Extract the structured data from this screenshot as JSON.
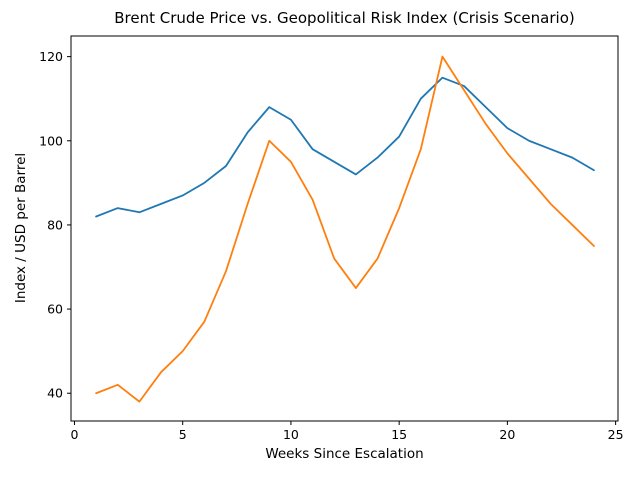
{
  "page": {
    "title": "Brent Crude Price vs. Geopolitical Risk Index (Crisis Scenario)"
  },
  "chart_data": {
    "type": "line",
    "title": "Brent Crude Price vs. Geopolitical Risk Index (Crisis Scenario)",
    "xlabel": "Weeks Since Escalation",
    "ylabel": "Index / USD per Barrel",
    "grid": false,
    "legend": "none",
    "x": [
      1,
      2,
      3,
      4,
      5,
      6,
      7,
      8,
      9,
      10,
      11,
      12,
      13,
      14,
      15,
      16,
      17,
      18,
      19,
      20,
      21,
      22,
      23,
      24
    ],
    "series": [
      {
        "name": "Brent Crude Price",
        "color": "#1f77b4",
        "values": [
          82,
          84,
          83,
          85,
          87,
          90,
          94,
          102,
          108,
          105,
          98,
          95,
          92,
          96,
          101,
          110,
          115,
          113,
          108,
          103,
          100,
          98,
          96,
          93
        ]
      },
      {
        "name": "Geopolitical Risk Index",
        "color": "#ff7f0e",
        "values": [
          40,
          42,
          38,
          45,
          50,
          57,
          69,
          85,
          100,
          95,
          86,
          72,
          65,
          72,
          84,
          98,
          120,
          112,
          104,
          97,
          91,
          85,
          80,
          75
        ]
      }
    ],
    "xticks": [
      0,
      5,
      10,
      15,
      20,
      25
    ],
    "yticks": [
      40,
      60,
      80,
      100,
      120
    ],
    "xlim": [
      -0.16,
      25.11
    ],
    "ylim": [
      33.4,
      124.9
    ]
  }
}
